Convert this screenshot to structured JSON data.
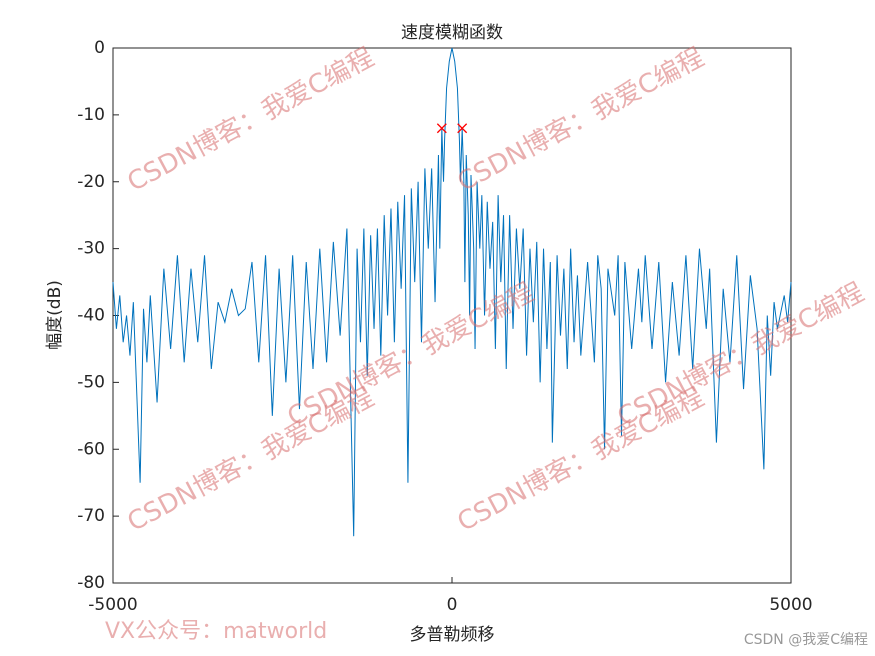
{
  "chart_data": {
    "type": "line",
    "title": "速度模糊函数",
    "x_label": "多普勒频移",
    "y_label": "幅度(dB)",
    "xlim": [
      -5000,
      5000
    ],
    "ylim": [
      -80,
      0
    ],
    "xticks": [
      -5000,
      0,
      5000
    ],
    "yticks": [
      0,
      -10,
      -20,
      -30,
      -40,
      -50,
      -60,
      -70,
      -80
    ],
    "series": [
      {
        "color": "#0072bd",
        "x": [
          -5000,
          -4950,
          -4900,
          -4850,
          -4800,
          -4750,
          -4700,
          -4600,
          -4550,
          -4500,
          -4450,
          -4350,
          -4250,
          -4150,
          -4050,
          -3950,
          -3850,
          -3750,
          -3650,
          -3550,
          -3450,
          -3350,
          -3250,
          -3150,
          -3050,
          -2950,
          -2850,
          -2750,
          -2650,
          -2550,
          -2450,
          -2350,
          -2250,
          -2150,
          -2050,
          -1950,
          -1850,
          -1750,
          -1650,
          -1550,
          -1450,
          -1400,
          -1350,
          -1300,
          -1250,
          -1200,
          -1150,
          -1100,
          -1050,
          -1000,
          -950,
          -900,
          -850,
          -800,
          -750,
          -700,
          -650,
          -600,
          -550,
          -500,
          -450,
          -400,
          -350,
          -300,
          -250,
          -200,
          -180,
          -150,
          -125,
          -110,
          -80,
          -40,
          0,
          40,
          80,
          110,
          125,
          150,
          175,
          190,
          210,
          240,
          260,
          280,
          320,
          340,
          370,
          410,
          440,
          480,
          520,
          560,
          600,
          640,
          680,
          720,
          760,
          800,
          850,
          900,
          950,
          1000,
          1050,
          1100,
          1150,
          1200,
          1250,
          1300,
          1350,
          1400,
          1450,
          1480,
          1550,
          1600,
          1650,
          1700,
          1750,
          1800,
          1850,
          1900,
          2000,
          2100,
          2150,
          2200,
          2250,
          2300,
          2400,
          2450,
          2500,
          2550,
          2650,
          2750,
          2800,
          2850,
          2950,
          3050,
          3150,
          3250,
          3350,
          3450,
          3550,
          3650,
          3750,
          3800,
          3900,
          4000,
          4100,
          4200,
          4300,
          4400,
          4500,
          4600,
          4650,
          4700,
          4750,
          4800,
          4900,
          4950,
          5000
        ],
        "values": [
          -35,
          -42,
          -37,
          -44,
          -40,
          -46,
          -38,
          -65,
          -39,
          -47,
          -37,
          -53,
          -33,
          -45,
          -31,
          -47,
          -33,
          -44,
          -31,
          -48,
          -38,
          -41,
          -36,
          -40,
          -39,
          -32,
          -47,
          -31,
          -55,
          -33,
          -50,
          -31,
          -54,
          -32,
          -48,
          -30,
          -47,
          -29,
          -43,
          -27,
          -73,
          -30,
          -44,
          -27,
          -49,
          -28,
          -42,
          -27,
          -46,
          -25,
          -40,
          -24,
          -44,
          -23,
          -36,
          -22,
          -65,
          -21,
          -35,
          -20,
          -44,
          -18,
          -30,
          -18,
          -38,
          -16,
          -30,
          -12,
          -20,
          -14,
          -6,
          -2,
          0,
          -2,
          -6,
          -14,
          -20,
          -12,
          -20,
          -35,
          -16,
          -25,
          -40,
          -19,
          -30,
          -45,
          -20,
          -30,
          -22,
          -40,
          -23,
          -33,
          -26,
          -45,
          -22,
          -35,
          -25,
          -48,
          -25,
          -42,
          -27,
          -36,
          -27,
          -46,
          -30,
          -41,
          -29,
          -50,
          -30,
          -45,
          -32,
          -59,
          -31,
          -43,
          -33,
          -48,
          -30,
          -44,
          -34,
          -46,
          -32,
          -47,
          -31,
          -36,
          -60,
          -33,
          -40,
          -31,
          -58,
          -32,
          -45,
          -33,
          -41,
          -31,
          -45,
          -32,
          -50,
          -35,
          -46,
          -31,
          -48,
          -30,
          -42,
          -33,
          -59,
          -36,
          -47,
          -31,
          -51,
          -34,
          -42,
          -63,
          -40,
          -49,
          -38,
          -42,
          -37,
          -41,
          -35
        ]
      },
      {
        "color": "#ff0000",
        "marker": "x",
        "x": [
          -150,
          150
        ],
        "values": [
          -12,
          -12
        ]
      }
    ],
    "annotations": [
      "CSDN博客：我爱C编程",
      "CSDN博客：我爱C编程",
      "CSDN博客：我爱C编程",
      "CSDN博客：我爱C编程",
      "CSDN博客：我爱C编程",
      "CSDN博客：我爱C编程",
      "VX公众号：matworld",
      "CSDN @我爱C编程"
    ]
  }
}
